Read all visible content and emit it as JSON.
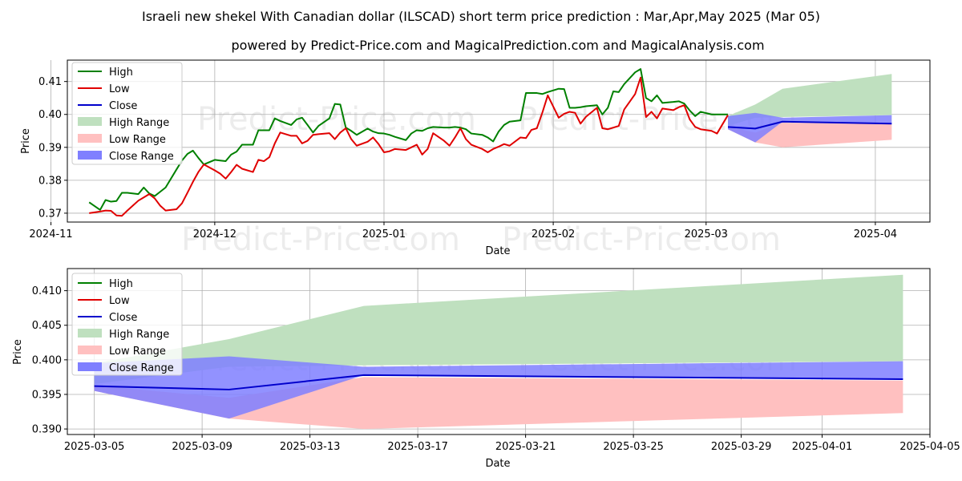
{
  "title": "Israeli new shekel With Canadian dollar (ILSCAD) short term price prediction : Mar,Apr,May 2025 (Mar 05)",
  "subtitle": "powered by Predict-Price.com and MagicalPrediction.com and MagicalAnalysis.com",
  "watermark": "Predict-Price.com",
  "colors": {
    "high": "#008000",
    "low": "#e00000",
    "close": "#0000cc",
    "high_range": "#bfe0bf",
    "low_range": "#ffc0c0",
    "close_range": "#7f7fff"
  },
  "chart_data": [
    {
      "type": "line",
      "xlabel": "Date",
      "ylabel": "Price",
      "xlim": [
        "2024-11-04",
        "2025-04-11"
      ],
      "ylim": [
        0.3673,
        0.4165
      ],
      "xticks": [
        "2024-11",
        "2024-12",
        "2025-01",
        "2025-02",
        "2025-03",
        "2025-04"
      ],
      "yticks": [
        "0.37",
        "0.38",
        "0.39",
        "0.40",
        "0.41"
      ],
      "legend": [
        "High",
        "Low",
        "Close",
        "High Range",
        "Low Range",
        "Close Range"
      ],
      "legend_position": "top-left",
      "grid": true,
      "history": {
        "dates": [
          "2024-11-08",
          "2024-11-10",
          "2024-11-11",
          "2024-11-12",
          "2024-11-13",
          "2024-11-14",
          "2024-11-15",
          "2024-11-17",
          "2024-11-18",
          "2024-11-19",
          "2024-11-20",
          "2024-11-21",
          "2024-11-22",
          "2024-11-24",
          "2024-11-25",
          "2024-11-26",
          "2024-11-27",
          "2024-11-28",
          "2024-11-29",
          "2024-12-01",
          "2024-12-02",
          "2024-12-03",
          "2024-12-04",
          "2024-12-05",
          "2024-12-06",
          "2024-12-08",
          "2024-12-09",
          "2024-12-10",
          "2024-12-11",
          "2024-12-12",
          "2024-12-13",
          "2024-12-15",
          "2024-12-16",
          "2024-12-17",
          "2024-12-18",
          "2024-12-19",
          "2024-12-20",
          "2024-12-22",
          "2024-12-23",
          "2024-12-24",
          "2024-12-25",
          "2024-12-26",
          "2024-12-27",
          "2024-12-29",
          "2024-12-30",
          "2024-12-31",
          "2025-01-01",
          "2025-01-02",
          "2025-01-03",
          "2025-01-05",
          "2025-01-06",
          "2025-01-07",
          "2025-01-08",
          "2025-01-09",
          "2025-01-10",
          "2025-01-12",
          "2025-01-13",
          "2025-01-14",
          "2025-01-15",
          "2025-01-16",
          "2025-01-17",
          "2025-01-19",
          "2025-01-20",
          "2025-01-21",
          "2025-01-22",
          "2025-01-23",
          "2025-01-24",
          "2025-01-26",
          "2025-01-27",
          "2025-01-28",
          "2025-01-29",
          "2025-01-30",
          "2025-01-31",
          "2025-02-02",
          "2025-02-03",
          "2025-02-04",
          "2025-02-05",
          "2025-02-06",
          "2025-02-07",
          "2025-02-09",
          "2025-02-10",
          "2025-02-11",
          "2025-02-12",
          "2025-02-13",
          "2025-02-14",
          "2025-02-16",
          "2025-02-17",
          "2025-02-18",
          "2025-02-19",
          "2025-02-20",
          "2025-02-21",
          "2025-02-23",
          "2025-02-24",
          "2025-02-25",
          "2025-02-26",
          "2025-02-27",
          "2025-02-28",
          "2025-03-02",
          "2025-03-03",
          "2025-03-04",
          "2025-03-05"
        ],
        "high": [
          0.3733,
          0.371,
          0.374,
          0.3735,
          0.3737,
          0.3762,
          0.3762,
          0.3758,
          0.3778,
          0.376,
          0.3752,
          0.3765,
          0.3778,
          0.3833,
          0.386,
          0.388,
          0.389,
          0.3868,
          0.3848,
          0.3862,
          0.386,
          0.3858,
          0.3878,
          0.3887,
          0.3908,
          0.3908,
          0.3952,
          0.3952,
          0.3952,
          0.3988,
          0.398,
          0.3968,
          0.3985,
          0.399,
          0.3968,
          0.3945,
          0.3965,
          0.3988,
          0.4032,
          0.403,
          0.396,
          0.395,
          0.3938,
          0.3957,
          0.3948,
          0.3943,
          0.3942,
          0.3938,
          0.3932,
          0.3922,
          0.3942,
          0.3952,
          0.395,
          0.3958,
          0.3962,
          0.396,
          0.396,
          0.3962,
          0.396,
          0.3955,
          0.3942,
          0.3938,
          0.393,
          0.3918,
          0.3948,
          0.3968,
          0.3978,
          0.3982,
          0.4065,
          0.4065,
          0.4065,
          0.4062,
          0.4068,
          0.4078,
          0.4077,
          0.402,
          0.402,
          0.4022,
          0.4025,
          0.4028,
          0.4,
          0.402,
          0.407,
          0.4068,
          0.4092,
          0.4128,
          0.4138,
          0.405,
          0.404,
          0.4058,
          0.4035,
          0.4038,
          0.404,
          0.4033,
          0.4012,
          0.3995,
          0.4008,
          0.4,
          0.4,
          0.4,
          0.4
        ],
        "low": [
          0.37,
          0.3705,
          0.3708,
          0.3707,
          0.3693,
          0.3692,
          0.3708,
          0.3738,
          0.3748,
          0.3758,
          0.3745,
          0.3723,
          0.3708,
          0.3712,
          0.373,
          0.3762,
          0.3795,
          0.3825,
          0.3848,
          0.383,
          0.382,
          0.3805,
          0.3825,
          0.3847,
          0.3835,
          0.3825,
          0.3862,
          0.3858,
          0.387,
          0.3912,
          0.3945,
          0.3935,
          0.3935,
          0.3912,
          0.392,
          0.3938,
          0.394,
          0.3943,
          0.3925,
          0.3945,
          0.3958,
          0.3925,
          0.3905,
          0.3917,
          0.393,
          0.391,
          0.3885,
          0.3888,
          0.3895,
          0.3892,
          0.39,
          0.3908,
          0.3878,
          0.3895,
          0.3943,
          0.392,
          0.3905,
          0.393,
          0.3958,
          0.3925,
          0.3908,
          0.3895,
          0.3885,
          0.3895,
          0.3902,
          0.391,
          0.3905,
          0.393,
          0.3928,
          0.3953,
          0.3958,
          0.4005,
          0.4058,
          0.399,
          0.4002,
          0.4008,
          0.4005,
          0.3972,
          0.3993,
          0.402,
          0.3958,
          0.3955,
          0.396,
          0.3965,
          0.4015,
          0.4062,
          0.4112,
          0.3992,
          0.4008,
          0.3988,
          0.4018,
          0.4013,
          0.4022,
          0.4028,
          0.3985,
          0.3962,
          0.3955,
          0.395,
          0.3942,
          0.397,
          0.3998
        ]
      }
    },
    {
      "type": "line",
      "xlabel": "Date",
      "ylabel": "Price",
      "xlim": [
        "2025-03-04",
        "2025-04-05"
      ],
      "ylim": [
        0.3892,
        0.4132
      ],
      "xticks": [
        "2025-03-05",
        "2025-03-09",
        "2025-03-13",
        "2025-03-17",
        "2025-03-21",
        "2025-03-25",
        "2025-03-29",
        "2025-04-01",
        "2025-04-05"
      ],
      "yticks": [
        "0.390",
        "0.395",
        "0.400",
        "0.405",
        "0.410"
      ],
      "legend": [
        "High",
        "Low",
        "Close",
        "High Range",
        "Low Range",
        "Close Range"
      ],
      "legend_position": "top-left",
      "grid": true,
      "forecast": {
        "dates": [
          "2025-03-05",
          "2025-03-10",
          "2025-03-15",
          "2025-04-04"
        ],
        "close": [
          0.3962,
          0.3957,
          0.3978,
          0.3972
        ],
        "high_range_upper": [
          0.3995,
          0.403,
          0.4078,
          0.4123
        ],
        "high_range_lower": [
          0.3965,
          0.399,
          0.3992,
          0.3998
        ],
        "low_range_upper": [
          0.3963,
          0.3945,
          0.3975,
          0.397
        ],
        "low_range_lower": [
          0.3955,
          0.3915,
          0.39,
          0.3923
        ],
        "close_range_upper": [
          0.3995,
          0.4005,
          0.399,
          0.3998
        ],
        "close_range_lower": [
          0.3955,
          0.3915,
          0.3978,
          0.3972
        ]
      }
    }
  ]
}
